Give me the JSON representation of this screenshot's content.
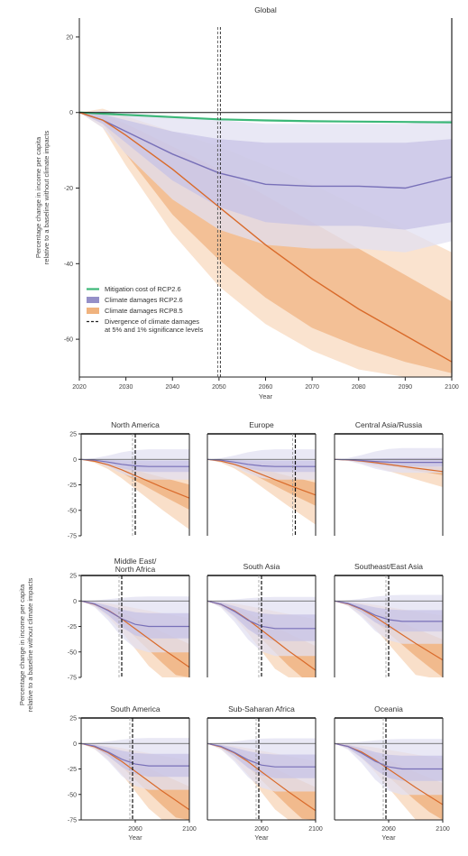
{
  "chart_data": [
    {
      "type": "line",
      "title": "Global",
      "xlabel": "Year",
      "ylabel": "Percentage change in income per capita relative to a baseline without climate impacts",
      "xlim": [
        2020,
        2100
      ],
      "ylim": [
        -70,
        25
      ],
      "x_ticks": [
        2020,
        2030,
        2040,
        2050,
        2060,
        2070,
        2080,
        2090,
        2100
      ],
      "y_ticks": [
        20,
        0,
        -20,
        -40,
        -60
      ],
      "divergence_year": 2050,
      "legend": {
        "placement": "bottom-left",
        "entries": [
          {
            "label": "Mitigation cost of RCP2.6",
            "color": "#3cb878",
            "style": "line"
          },
          {
            "label": "Climate damages RCP2.6",
            "color": "#9590c8",
            "style": "patch"
          },
          {
            "label": "Climate damages RCP8.5",
            "color": "#f0b37e",
            "style": "patch"
          },
          {
            "label": "Divergence of climate damages at 5% and 1% significance levels",
            "color": "#222222",
            "style": "dashed"
          }
        ]
      },
      "series": [
        {
          "name": "Mitigation cost of RCP2.6",
          "color": "#3cb878",
          "x": [
            2020,
            2025,
            2030,
            2040,
            2050,
            2060,
            2070,
            2080,
            2090,
            2100
          ],
          "values": [
            0,
            -0.3,
            -0.6,
            -1.2,
            -1.8,
            -2.1,
            -2.3,
            -2.4,
            -2.5,
            -2.6
          ]
        },
        {
          "name": "Climate damages RCP2.6",
          "color": "#7870b8",
          "x": [
            2020,
            2025,
            2030,
            2040,
            2050,
            2060,
            2070,
            2080,
            2090,
            2100
          ],
          "values": [
            0,
            -2,
            -5,
            -11,
            -16,
            -19,
            -19.5,
            -19.5,
            -20,
            -17
          ],
          "bands": [
            {
              "lower": [
                0,
                -3,
                -8,
                -18,
                -25,
                -29,
                -30,
                -30,
                -31,
                -29
              ],
              "upper": [
                0,
                -0.5,
                -2,
                -5,
                -7,
                -8,
                -8,
                -8,
                -8,
                -7
              ]
            },
            {
              "lower": [
                0,
                -4,
                -11,
                -23,
                -31,
                -35,
                -36,
                -36,
                -37,
                -34
              ],
              "upper": [
                0,
                0.5,
                0,
                -1,
                -2,
                -3,
                -3,
                -3,
                -3,
                -2
              ]
            }
          ]
        },
        {
          "name": "Climate damages RCP8.5",
          "color": "#d96a2a",
          "x": [
            2020,
            2025,
            2030,
            2040,
            2050,
            2060,
            2070,
            2080,
            2090,
            2100
          ],
          "values": [
            0,
            -2,
            -6,
            -15,
            -25,
            -35,
            -44,
            -52,
            -59,
            -66
          ],
          "bands": [
            {
              "lower": [
                0,
                -3,
                -11,
                -27,
                -39,
                -49,
                -57,
                -62,
                -66,
                -69
              ],
              "upper": [
                0,
                -0.5,
                -3,
                -9,
                -15,
                -22,
                -29,
                -36,
                -43,
                -50
              ]
            },
            {
              "lower": [
                0,
                -4,
                -14,
                -32,
                -46,
                -56,
                -63,
                -68,
                -70,
                -70
              ],
              "upper": [
                0,
                1,
                -1,
                -5,
                -9,
                -14,
                -19,
                -25,
                -31,
                -37
              ]
            }
          ]
        }
      ]
    },
    {
      "type": "line",
      "panels_xlabel": "Year",
      "panels_ylabel": "Percentage change in income per capita relative to a baseline without climate impacts",
      "xlim": [
        2020,
        2100
      ],
      "ylim": [
        -75,
        25
      ],
      "x_ticks": [
        2060,
        2100
      ],
      "y_ticks": [
        25,
        0,
        -25,
        -50,
        -75
      ],
      "panels": [
        {
          "title": "North America",
          "divergence_year": 2060,
          "rcp26": -7,
          "rcp85": -38
        },
        {
          "title": "Europe",
          "divergence_year": 2085,
          "rcp26": -7,
          "rcp85": -35
        },
        {
          "title": "Central Asia/Russia",
          "divergence_year": null,
          "rcp26": -3,
          "rcp85": -12
        },
        {
          "title": "Middle East/ North Africa",
          "divergence_year": 2050,
          "rcp26": -25,
          "rcp85": -65
        },
        {
          "title": "South Asia",
          "divergence_year": 2060,
          "rcp26": -27,
          "rcp85": -68
        },
        {
          "title": "Southeast/East Asia",
          "divergence_year": 2060,
          "rcp26": -20,
          "rcp85": -58
        },
        {
          "title": "South America",
          "divergence_year": 2058,
          "rcp26": -22,
          "rcp85": -65
        },
        {
          "title": "Sub-Saharan Africa",
          "divergence_year": 2058,
          "rcp26": -23,
          "rcp85": -66
        },
        {
          "title": "Oceania",
          "divergence_year": 2058,
          "rcp26": -25,
          "rcp85": -60
        }
      ]
    }
  ]
}
